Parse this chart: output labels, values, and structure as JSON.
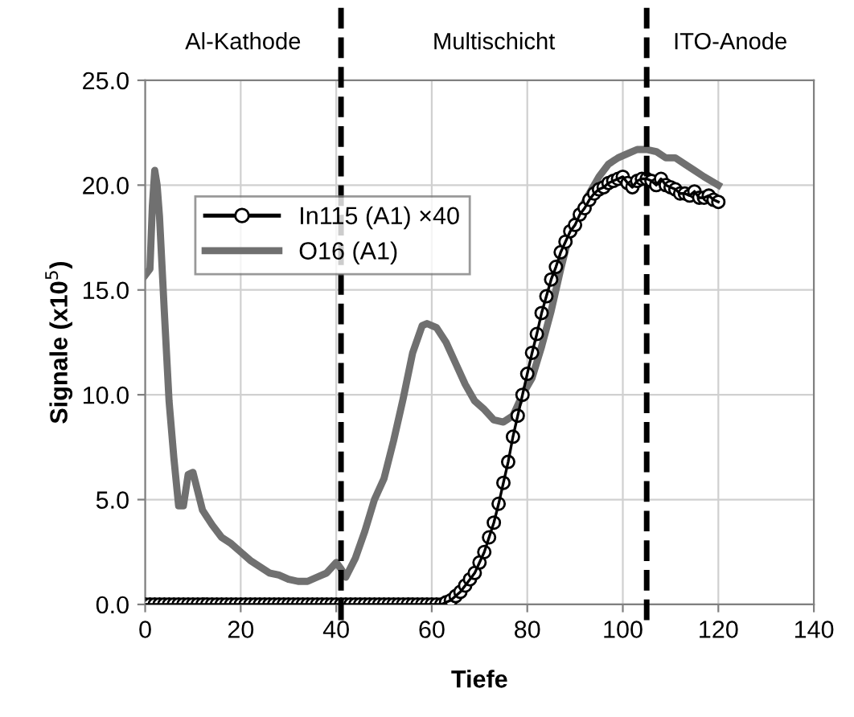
{
  "chart_data": {
    "type": "line",
    "xlabel": "Tiefe",
    "ylabel": "Signale (x10$^{5}$)",
    "xlim": [
      0,
      140
    ],
    "xticks": [
      0,
      20,
      40,
      60,
      80,
      100,
      120,
      140
    ],
    "ylim": [
      0,
      25
    ],
    "yticks": [
      {
        "value": 0,
        "label": "0.0"
      },
      {
        "value": 5,
        "label": "5.0"
      },
      {
        "value": 10,
        "label": "10.0"
      },
      {
        "value": 15,
        "label": "15.0"
      },
      {
        "value": 20,
        "label": "20.0"
      },
      {
        "value": 25,
        "label": "25.0"
      }
    ],
    "grid": true,
    "legend": "top left",
    "series": [
      {
        "name": "In115 (A1) ×40",
        "color": "#000000",
        "marker": "circle",
        "x": [
          0,
          1,
          2,
          3,
          4,
          5,
          6,
          7,
          8,
          9,
          10,
          11,
          12,
          13,
          14,
          15,
          16,
          17,
          18,
          19,
          20,
          21,
          22,
          23,
          24,
          25,
          26,
          27,
          28,
          29,
          30,
          31,
          32,
          33,
          34,
          35,
          36,
          37,
          38,
          39,
          40,
          41,
          42,
          43,
          44,
          45,
          46,
          47,
          48,
          49,
          50,
          51,
          52,
          53,
          54,
          55,
          56,
          57,
          58,
          59,
          60,
          61,
          62,
          63,
          64,
          65,
          66,
          67,
          68,
          69,
          70,
          71,
          72,
          73,
          74,
          75,
          76,
          77,
          78,
          79,
          80,
          81,
          82,
          83,
          84,
          85,
          86,
          87,
          88,
          89,
          90,
          91,
          92,
          93,
          94,
          95,
          96,
          97,
          98,
          99,
          100,
          101,
          102,
          103,
          104,
          105,
          106,
          107,
          108,
          109,
          110,
          111,
          112,
          113,
          114,
          115,
          116,
          117,
          118,
          119,
          120
        ],
        "values": [
          0,
          0,
          0,
          0,
          0,
          0,
          0,
          0,
          0,
          0,
          0,
          0,
          0,
          0,
          0,
          0,
          0,
          0,
          0,
          0,
          0,
          0,
          0,
          0,
          0,
          0,
          0,
          0,
          0,
          0,
          0,
          0,
          0,
          0,
          0,
          0,
          0,
          0,
          0,
          0,
          0,
          0,
          0,
          0,
          0,
          0,
          0,
          0,
          0,
          0,
          0,
          0,
          0,
          0,
          0,
          0,
          0,
          0,
          0,
          0,
          0,
          0,
          0,
          0.1,
          0.2,
          0.4,
          0.6,
          0.9,
          1.2,
          1.5,
          2.0,
          2.5,
          3.2,
          3.9,
          4.8,
          5.8,
          6.8,
          8.0,
          9.0,
          10.0,
          11.0,
          12.0,
          12.9,
          13.9,
          14.7,
          15.5,
          16.1,
          16.8,
          17.3,
          17.8,
          18.1,
          18.6,
          18.9,
          19.3,
          19.6,
          19.8,
          19.9,
          20.1,
          20.2,
          20.3,
          20.4,
          20.1,
          19.9,
          20.2,
          20.3,
          20.3,
          20.2,
          20.0,
          20.3,
          20.0,
          19.9,
          19.8,
          19.6,
          19.6,
          19.5,
          19.7,
          19.4,
          19.4,
          19.5,
          19.3,
          19.2
        ]
      },
      {
        "name": "O16 (A1)",
        "color": "#707070",
        "marker": "none",
        "x": [
          0,
          1,
          1.5,
          2,
          2.5,
          3,
          4,
          5,
          6,
          7,
          8,
          9,
          10,
          12,
          14,
          16,
          18,
          20,
          22,
          24,
          26,
          28,
          30,
          32,
          34,
          36,
          38,
          40,
          41,
          42,
          44,
          46,
          48,
          50,
          52,
          54,
          56,
          58,
          59,
          61,
          63,
          65,
          67,
          69,
          71,
          73,
          75,
          77,
          79,
          81,
          83,
          85,
          87,
          89,
          91,
          93,
          95,
          97,
          99,
          101,
          103,
          105,
          107,
          109,
          111,
          113,
          115,
          117,
          120
        ],
        "values": [
          15.7,
          16,
          19,
          20.7,
          20,
          18.5,
          14,
          9.7,
          7,
          4.7,
          4.7,
          6.2,
          6.3,
          4.5,
          3.8,
          3.2,
          2.9,
          2.5,
          2.1,
          1.8,
          1.5,
          1.4,
          1.2,
          1.1,
          1.1,
          1.3,
          1.5,
          2.0,
          1.7,
          1.3,
          2.2,
          3.5,
          5.0,
          6.0,
          7.8,
          9.8,
          12.0,
          13.3,
          13.4,
          13.2,
          12.5,
          11.5,
          10.5,
          9.7,
          9.3,
          8.8,
          8.7,
          9.0,
          10.0,
          10.8,
          12.3,
          14.0,
          16.0,
          17.8,
          18.8,
          19.6,
          20.4,
          21.0,
          21.3,
          21.5,
          21.7,
          21.7,
          21.6,
          21.3,
          21.3,
          21.0,
          20.7,
          20.4,
          20.0
        ]
      }
    ],
    "ref_lines": [
      {
        "axis": "x",
        "value": 41,
        "color": "#000000",
        "line_style": "dashed"
      },
      {
        "axis": "x",
        "value": 105,
        "color": "#000000",
        "line_style": "dashed"
      }
    ],
    "annotations": [
      "Al-Kathode",
      "Multischicht",
      "ITO-Anode"
    ]
  }
}
